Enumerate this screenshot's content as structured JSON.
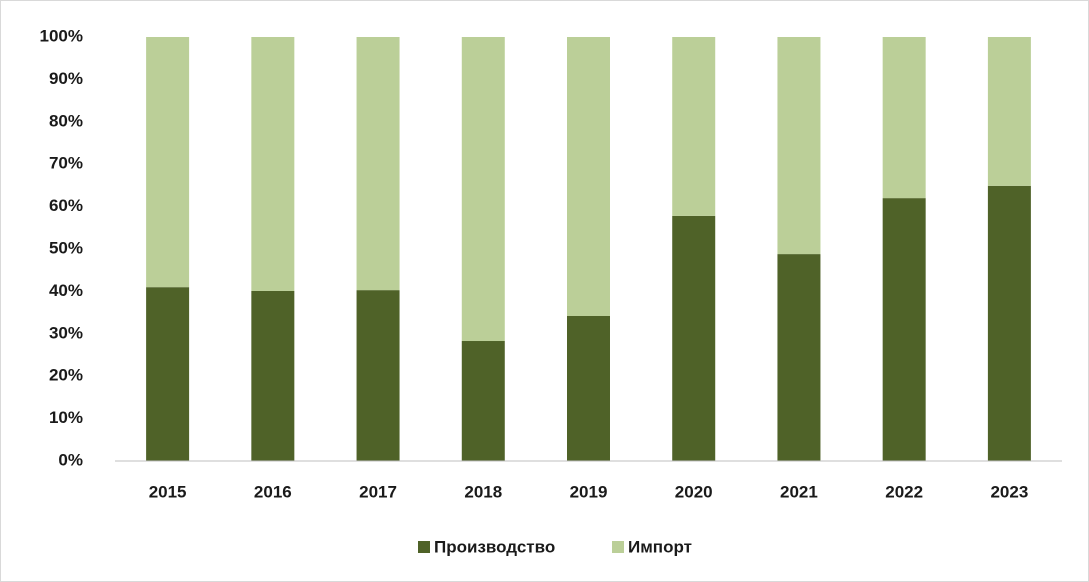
{
  "chart_data": {
    "type": "stacked_bar",
    "categories": [
      "2015",
      "2016",
      "2017",
      "2018",
      "2019",
      "2020",
      "2021",
      "2022",
      "2023"
    ],
    "series": [
      {
        "name": "Производство",
        "color": "#4f6228",
        "values": [
          41.0,
          40.1,
          40.3,
          28.3,
          34.2,
          57.8,
          48.8,
          62.0,
          64.9
        ]
      },
      {
        "name": "Импорт",
        "color": "#bbcf98",
        "values": [
          59.0,
          59.9,
          59.7,
          71.7,
          65.8,
          42.2,
          51.2,
          38.0,
          35.1
        ]
      }
    ],
    "ylim": [
      0,
      100
    ],
    "yticks": [
      {
        "value": 0,
        "label": "0%"
      },
      {
        "value": 10,
        "label": "10%"
      },
      {
        "value": 20,
        "label": "20%"
      },
      {
        "value": 30,
        "label": "30%"
      },
      {
        "value": 40,
        "label": "40%"
      },
      {
        "value": 50,
        "label": "50%"
      },
      {
        "value": 60,
        "label": "60%"
      },
      {
        "value": 70,
        "label": "70%"
      },
      {
        "value": 80,
        "label": "80%"
      },
      {
        "value": 90,
        "label": "90%"
      },
      {
        "value": 100,
        "label": "100%"
      }
    ],
    "legend": "bottom"
  }
}
